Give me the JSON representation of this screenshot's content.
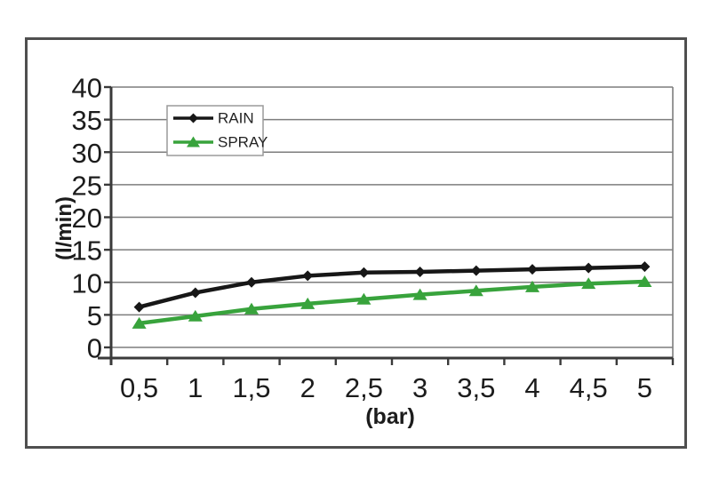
{
  "frame": {
    "border_color": "#4f4f4f",
    "background": "#ffffff"
  },
  "chart_data": {
    "type": "line",
    "title": "",
    "xlabel": "(bar)",
    "ylabel": "(l/min)",
    "categories": [
      "0,5",
      "1",
      "1,5",
      "2",
      "2,5",
      "3",
      "3,5",
      "4",
      "4,5",
      "5"
    ],
    "yticks": [
      0,
      5,
      10,
      15,
      20,
      25,
      30,
      35,
      40
    ],
    "ylim": [
      0,
      40
    ],
    "grid": true,
    "legend_position": "top-left-inside",
    "series": [
      {
        "name": "RAIN",
        "marker": "diamond",
        "color": "#171717",
        "values": [
          6.2,
          8.4,
          10.0,
          11.0,
          11.5,
          11.6,
          11.8,
          12.0,
          12.2,
          12.4
        ]
      },
      {
        "name": "SPRAY",
        "marker": "triangle",
        "color": "#38a33c",
        "values": [
          3.7,
          4.8,
          5.9,
          6.7,
          7.4,
          8.1,
          8.7,
          9.3,
          9.8,
          10.1
        ]
      }
    ]
  },
  "styles": {
    "grid_color": "#7d7d7d",
    "axis_color": "#3a3a3a",
    "tick_label_color": "#1c1c1c",
    "legend_border_color": "#9a9a9a",
    "legend_background": "#ffffff",
    "legend_text_color": "#222222"
  }
}
